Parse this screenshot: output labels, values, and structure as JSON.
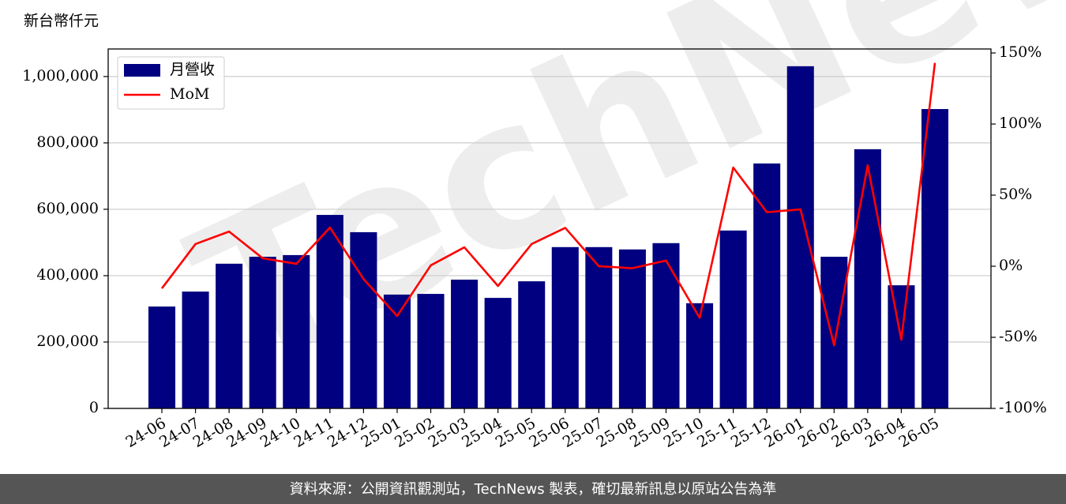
{
  "chart_data": {
    "type": "bar-line",
    "y_label": "新台幣仟元",
    "watermark": "TechNews",
    "footer": "資料來源：公開資訊觀測站，TechNews 製表，確切最新訊息以原站公告為準",
    "categories": [
      "24-06",
      "24-07",
      "24-08",
      "24-09",
      "24-10",
      "24-11",
      "24-12",
      "25-01",
      "25-02",
      "25-03",
      "25-04",
      "25-05",
      "25-06",
      "25-07",
      "25-08",
      "25-09",
      "25-10",
      "25-11",
      "25-12",
      "26-01",
      "26-02",
      "26-03",
      "26-04",
      "26-05"
    ],
    "series": [
      {
        "name": "月營收",
        "color": "#000080",
        "kind": "bar",
        "values": [
          307000,
          352000,
          436000,
          457000,
          462000,
          583000,
          531000,
          343000,
          345000,
          388000,
          333000,
          383000,
          486000,
          486000,
          479000,
          498000,
          317000,
          536000,
          738000,
          1031000,
          457000,
          781000,
          371000,
          902000
        ]
      },
      {
        "name": "MoM",
        "color": "#ff0000",
        "kind": "line",
        "axis": "y2",
        "values": [
          -15.6,
          15.6,
          24.4,
          5.6,
          1.7,
          27.2,
          -9,
          -35,
          0.6,
          13.3,
          -13.9,
          15.6,
          27,
          0,
          -1.4,
          4,
          -36.3,
          69.4,
          38,
          40,
          -55.6,
          71,
          -51.7,
          143
        ]
      }
    ],
    "ylim": [
      0,
      1083000
    ],
    "yticks": [
      0,
      {
        "value": 200000,
        "label": "200,000"
      },
      {
        "value": 400000,
        "label": "400,000"
      },
      {
        "value": 600000,
        "label": "600,000"
      },
      {
        "value": 800000,
        "label": "800,000"
      },
      {
        "value": 1000000,
        "label": "1,000,000"
      }
    ],
    "y2lim": [
      -100,
      152.8
    ],
    "y2ticks": [
      {
        "value": -100,
        "label": "-100%"
      },
      {
        "value": -50,
        "label": "-50%"
      },
      {
        "value": 0,
        "label": "0%"
      },
      {
        "value": 50,
        "label": "50%"
      },
      {
        "value": 100,
        "label": "100%"
      },
      {
        "value": 150,
        "label": "150%"
      }
    ],
    "grid": true,
    "legend": "upper left"
  }
}
